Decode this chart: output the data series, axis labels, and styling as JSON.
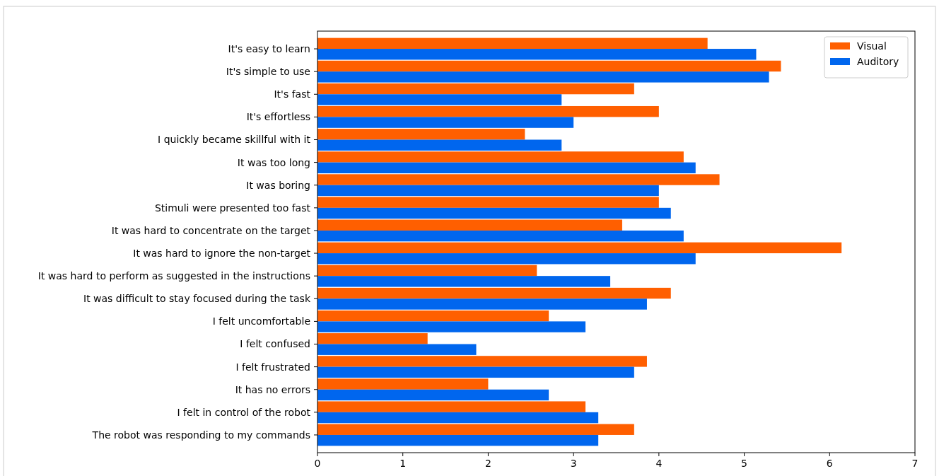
{
  "chart_data": {
    "type": "bar",
    "orientation": "horizontal",
    "categories": [
      "It's easy to learn",
      "It's simple to use",
      "It's fast",
      "It's effortless",
      "I quickly became skillful with it",
      "It was too long",
      "It was boring",
      "Stimuli were presented too fast",
      "It was hard to concentrate on the target",
      "It was hard to ignore the non-target",
      "It was hard to perform as suggested in the instructions",
      "It was difficult to stay focused during the task",
      "I felt uncomfortable",
      "I felt confused",
      "I felt frustrated",
      "It has no errors",
      "I felt in control of the robot",
      "The robot was responding to my commands"
    ],
    "series": [
      {
        "name": "Visual",
        "color": "#ff5f00",
        "values": [
          4.57,
          5.43,
          3.71,
          4.0,
          2.43,
          4.29,
          4.71,
          4.0,
          3.57,
          6.14,
          2.57,
          4.14,
          2.71,
          1.29,
          3.86,
          2.0,
          3.14,
          3.71
        ]
      },
      {
        "name": "Auditory",
        "color": "#0066ee",
        "values": [
          5.14,
          5.29,
          2.86,
          3.0,
          2.86,
          4.43,
          4.0,
          4.14,
          4.29,
          4.43,
          3.43,
          3.86,
          3.14,
          1.86,
          3.71,
          2.71,
          3.29,
          3.29
        ]
      }
    ],
    "xlim": [
      0,
      7
    ],
    "xticks": [
      0,
      1,
      2,
      3,
      4,
      5,
      6,
      7
    ],
    "grid": false,
    "legend": "top right"
  }
}
